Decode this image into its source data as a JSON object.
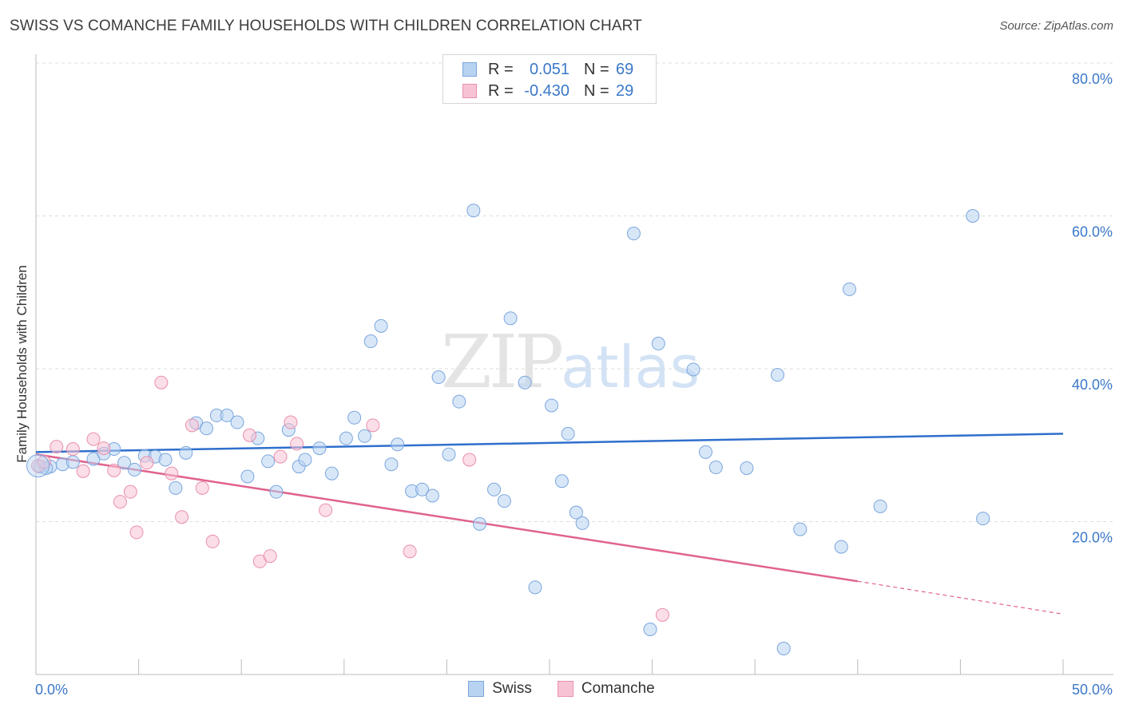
{
  "title": "SWISS VS COMANCHE FAMILY HOUSEHOLDS WITH CHILDREN CORRELATION CHART",
  "source": "Source: ZipAtlas.com",
  "watermark": {
    "zip": "ZIP",
    "atlas": "atlas"
  },
  "legend": {
    "swiss": {
      "r_label": "R =",
      "r_value": "0.051",
      "n_label": "N =",
      "n_value": "69"
    },
    "comanche": {
      "r_label": "R =",
      "r_value": "-0.430",
      "n_label": "N =",
      "n_value": "29"
    }
  },
  "colors": {
    "swiss_fill": "#b8d3f2",
    "swiss_stroke": "#7aa6dd",
    "swiss_line": "#2f6fcc",
    "comanche_fill": "#f7c3d4",
    "comanche_stroke": "#e98fae",
    "comanche_line": "#e0628f",
    "axis_text": "#3b78c8",
    "grid": "#dddddd"
  },
  "chart_data": {
    "type": "scatter",
    "title": "SWISS VS COMANCHE FAMILY HOUSEHOLDS WITH CHILDREN CORRELATION CHART",
    "xlabel": "",
    "ylabel": "Family Households with Children",
    "xlim": [
      0,
      50
    ],
    "ylim": [
      0,
      80
    ],
    "x_tick_labels": [
      "0.0%",
      "50.0%"
    ],
    "y_ticks": [
      20,
      40,
      60,
      80
    ],
    "y_tick_labels": [
      "20.0%",
      "40.0%",
      "60.0%",
      "80.0%"
    ],
    "grid": true,
    "legend_position": "top-center",
    "series": [
      {
        "name": "Swiss",
        "points": [
          [
            0.2,
            27.2
          ],
          [
            0.7,
            27.2
          ],
          [
            1.3,
            27.5
          ],
          [
            1.8,
            27.8
          ],
          [
            2.8,
            28.2
          ],
          [
            3.3,
            28.9
          ],
          [
            3.8,
            29.5
          ],
          [
            4.3,
            27.7
          ],
          [
            4.8,
            26.8
          ],
          [
            5.3,
            28.6
          ],
          [
            5.8,
            28.5
          ],
          [
            6.3,
            28.1
          ],
          [
            6.8,
            24.4
          ],
          [
            7.3,
            29.0
          ],
          [
            7.8,
            32.9
          ],
          [
            8.3,
            32.2
          ],
          [
            8.8,
            33.9
          ],
          [
            9.3,
            33.9
          ],
          [
            9.8,
            33.0
          ],
          [
            10.3,
            25.9
          ],
          [
            10.8,
            30.9
          ],
          [
            11.3,
            27.9
          ],
          [
            11.7,
            23.9
          ],
          [
            12.3,
            32.0
          ],
          [
            12.8,
            27.2
          ],
          [
            13.1,
            28.1
          ],
          [
            13.8,
            29.6
          ],
          [
            14.4,
            26.3
          ],
          [
            15.1,
            30.9
          ],
          [
            15.5,
            33.6
          ],
          [
            16.0,
            31.2
          ],
          [
            16.3,
            43.6
          ],
          [
            16.8,
            45.6
          ],
          [
            17.3,
            27.5
          ],
          [
            17.6,
            30.1
          ],
          [
            18.3,
            24.0
          ],
          [
            18.8,
            24.2
          ],
          [
            19.3,
            23.4
          ],
          [
            19.6,
            38.9
          ],
          [
            20.1,
            28.8
          ],
          [
            20.6,
            35.7
          ],
          [
            21.3,
            60.7
          ],
          [
            21.6,
            19.7
          ],
          [
            22.3,
            24.2
          ],
          [
            22.8,
            22.7
          ],
          [
            23.1,
            46.6
          ],
          [
            23.8,
            38.2
          ],
          [
            24.3,
            11.4
          ],
          [
            25.1,
            35.2
          ],
          [
            25.6,
            25.3
          ],
          [
            25.9,
            31.5
          ],
          [
            26.3,
            21.2
          ],
          [
            26.6,
            19.8
          ],
          [
            29.1,
            57.7
          ],
          [
            29.9,
            5.9
          ],
          [
            30.3,
            43.3
          ],
          [
            32.0,
            39.9
          ],
          [
            32.6,
            29.1
          ],
          [
            33.1,
            27.1
          ],
          [
            34.6,
            27.0
          ],
          [
            36.1,
            39.2
          ],
          [
            36.4,
            3.4
          ],
          [
            37.2,
            19.0
          ],
          [
            39.2,
            16.7
          ],
          [
            39.6,
            50.4
          ],
          [
            41.1,
            22.0
          ],
          [
            45.6,
            60.0
          ],
          [
            46.1,
            20.4
          ],
          [
            0.5,
            27.0
          ]
        ]
      },
      {
        "name": "Comanche",
        "points": [
          [
            0.1,
            27.3
          ],
          [
            0.4,
            27.8
          ],
          [
            1.0,
            29.8
          ],
          [
            1.8,
            29.5
          ],
          [
            2.3,
            26.6
          ],
          [
            2.8,
            30.8
          ],
          [
            3.3,
            29.6
          ],
          [
            3.8,
            26.7
          ],
          [
            4.1,
            22.6
          ],
          [
            4.6,
            23.9
          ],
          [
            4.9,
            18.6
          ],
          [
            5.4,
            27.7
          ],
          [
            6.1,
            38.2
          ],
          [
            6.6,
            26.3
          ],
          [
            7.1,
            20.6
          ],
          [
            7.6,
            32.6
          ],
          [
            8.1,
            24.4
          ],
          [
            8.6,
            17.4
          ],
          [
            10.4,
            31.3
          ],
          [
            10.9,
            14.8
          ],
          [
            11.4,
            15.5
          ],
          [
            11.9,
            28.5
          ],
          [
            12.4,
            33.0
          ],
          [
            12.7,
            30.2
          ],
          [
            14.1,
            21.5
          ],
          [
            16.4,
            32.6
          ],
          [
            18.2,
            16.1
          ],
          [
            21.1,
            28.1
          ],
          [
            30.5,
            7.8
          ]
        ]
      }
    ],
    "trend_lines": [
      {
        "name": "Swiss",
        "x": [
          0,
          50
        ],
        "y": [
          29.1,
          31.5
        ]
      },
      {
        "name": "Comanche",
        "x": [
          0,
          40
        ],
        "y": [
          28.8,
          12.2
        ],
        "dashed_x": [
          40,
          50
        ],
        "dashed_y": [
          12.2,
          7.9
        ]
      }
    ]
  },
  "bottom_legend": {
    "swiss": "Swiss",
    "comanche": "Comanche"
  }
}
